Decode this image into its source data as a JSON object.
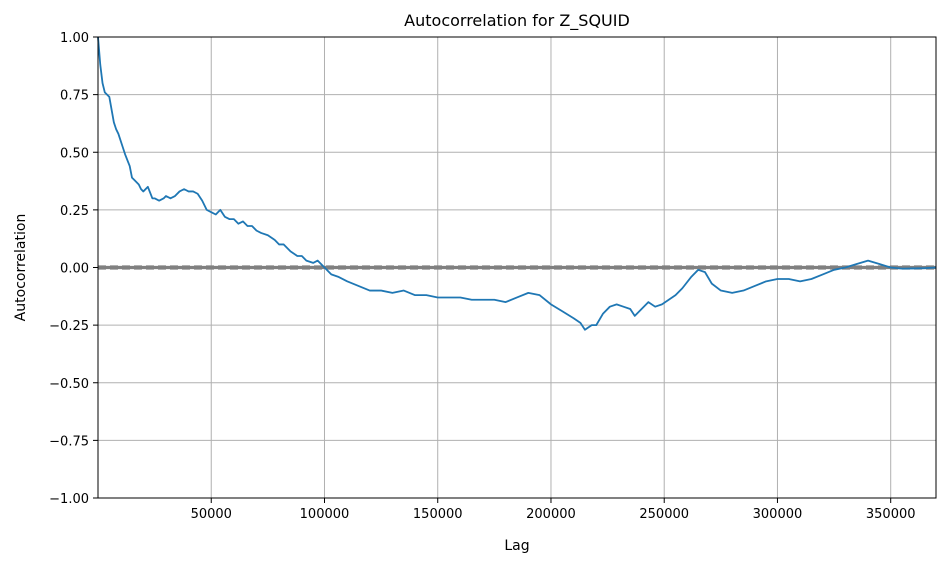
{
  "chart_data": {
    "type": "line",
    "title": "Autocorrelation for Z_SQUID",
    "xlabel": "Lag",
    "ylabel": "Autocorrelation",
    "xlim": [
      0,
      370000
    ],
    "ylim": [
      -1.0,
      1.0
    ],
    "grid": true,
    "x_ticks": [
      50000,
      100000,
      150000,
      200000,
      250000,
      300000,
      350000
    ],
    "x_tick_labels": [
      "50000",
      "100000",
      "150000",
      "200000",
      "250000",
      "300000",
      "350000"
    ],
    "y_ticks": [
      -1.0,
      -0.75,
      -0.5,
      -0.25,
      0.0,
      0.25,
      0.5,
      0.75,
      1.0
    ],
    "y_tick_labels": [
      "−1.00",
      "−0.75",
      "−0.50",
      "−0.25",
      "0.00",
      "0.25",
      "0.50",
      "0.75",
      "1.00"
    ],
    "reference_lines": [
      {
        "y": 0.0,
        "style": "solid",
        "color": "#808080"
      },
      {
        "y": 0.004,
        "style": "solid",
        "color": "#808080"
      },
      {
        "y": -0.004,
        "style": "solid",
        "color": "#808080"
      },
      {
        "y": 0.006,
        "style": "dashed",
        "color": "#808080"
      },
      {
        "y": -0.006,
        "style": "dashed",
        "color": "#808080"
      }
    ],
    "series": [
      {
        "color": "#1f77b4",
        "x": [
          0,
          1000,
          2000,
          3000,
          5000,
          7000,
          8000,
          9000,
          11000,
          12000,
          14000,
          15000,
          16000,
          18000,
          19000,
          20000,
          22000,
          24000,
          25000,
          27000,
          29000,
          30000,
          32000,
          34000,
          36000,
          38000,
          40000,
          42000,
          44000,
          46000,
          48000,
          50000,
          52000,
          54000,
          56000,
          58000,
          60000,
          62000,
          64000,
          66000,
          68000,
          70000,
          72000,
          75000,
          78000,
          80000,
          82000,
          85000,
          88000,
          90000,
          92000,
          95000,
          97000,
          100000,
          103000,
          106000,
          110000,
          115000,
          120000,
          125000,
          130000,
          135000,
          140000,
          145000,
          150000,
          155000,
          160000,
          165000,
          170000,
          175000,
          180000,
          185000,
          190000,
          195000,
          200000,
          205000,
          210000,
          213000,
          215000,
          218000,
          220000,
          223000,
          226000,
          229000,
          232000,
          235000,
          237000,
          240000,
          243000,
          246000,
          249000,
          252000,
          255000,
          258000,
          262000,
          265000,
          268000,
          271000,
          275000,
          280000,
          285000,
          290000,
          295000,
          300000,
          305000,
          310000,
          315000,
          320000,
          325000,
          330000,
          335000,
          340000,
          345000,
          350000,
          355000,
          360000,
          365000,
          370000
        ],
        "values": [
          1.0,
          0.88,
          0.8,
          0.76,
          0.74,
          0.63,
          0.6,
          0.58,
          0.52,
          0.49,
          0.44,
          0.39,
          0.38,
          0.36,
          0.34,
          0.33,
          0.35,
          0.3,
          0.3,
          0.29,
          0.3,
          0.31,
          0.3,
          0.31,
          0.33,
          0.34,
          0.33,
          0.33,
          0.32,
          0.29,
          0.25,
          0.24,
          0.23,
          0.25,
          0.22,
          0.21,
          0.21,
          0.19,
          0.2,
          0.18,
          0.18,
          0.16,
          0.15,
          0.14,
          0.12,
          0.1,
          0.1,
          0.07,
          0.05,
          0.05,
          0.03,
          0.02,
          0.03,
          0.0,
          -0.03,
          -0.04,
          -0.06,
          -0.08,
          -0.1,
          -0.1,
          -0.11,
          -0.1,
          -0.12,
          -0.12,
          -0.13,
          -0.13,
          -0.13,
          -0.14,
          -0.14,
          -0.14,
          -0.15,
          -0.13,
          -0.11,
          -0.12,
          -0.16,
          -0.19,
          -0.22,
          -0.24,
          -0.27,
          -0.25,
          -0.25,
          -0.2,
          -0.17,
          -0.16,
          -0.17,
          -0.18,
          -0.21,
          -0.18,
          -0.15,
          -0.17,
          -0.16,
          -0.14,
          -0.12,
          -0.09,
          -0.04,
          -0.01,
          -0.02,
          -0.07,
          -0.1,
          -0.11,
          -0.1,
          -0.08,
          -0.06,
          -0.05,
          -0.05,
          -0.06,
          -0.05,
          -0.03,
          -0.01,
          0.0,
          0.015,
          0.03,
          0.015,
          0.0,
          -0.005,
          -0.004,
          -0.003,
          0.0
        ]
      }
    ]
  }
}
